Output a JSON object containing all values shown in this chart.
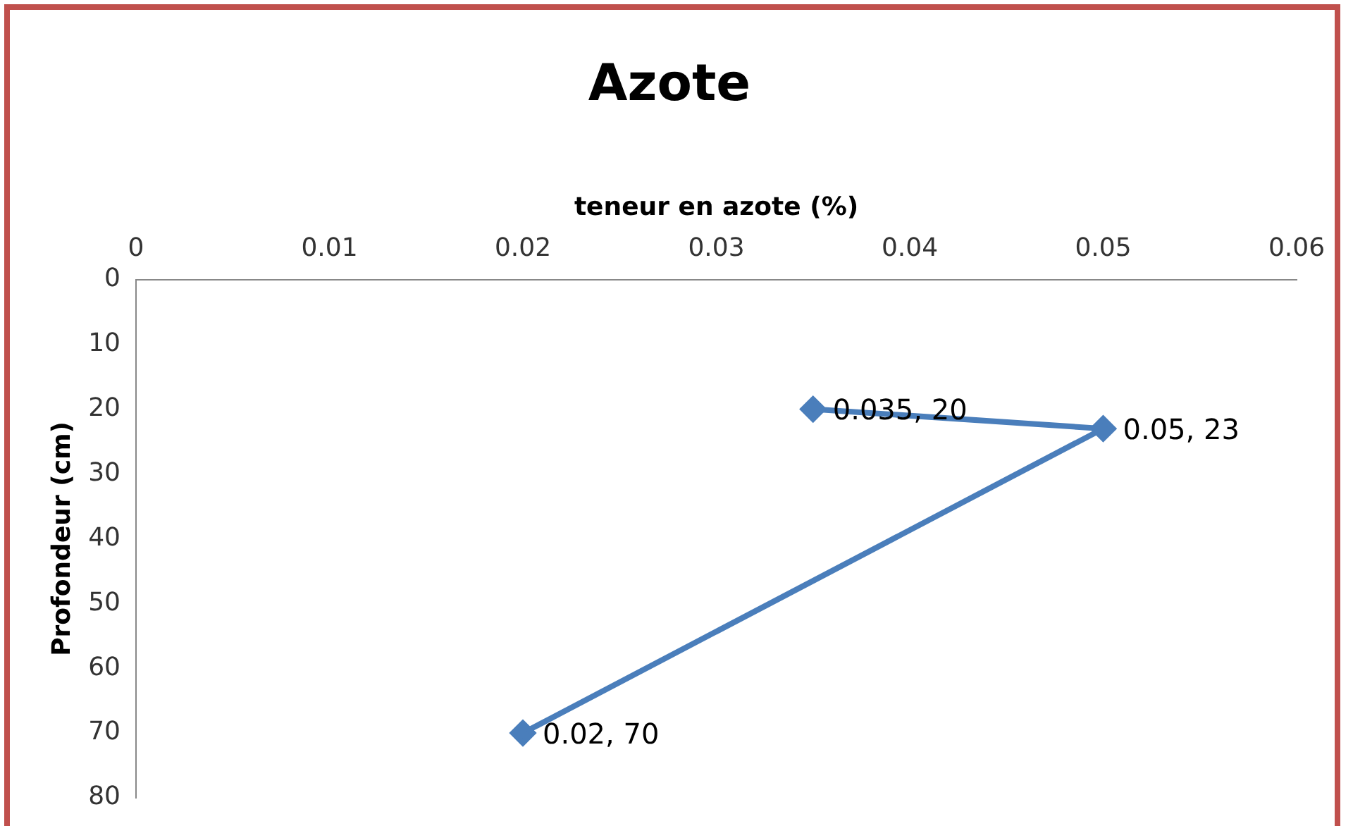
{
  "chart_data": {
    "type": "line",
    "title": "Azote",
    "xlabel": "teneur en azote (%)",
    "ylabel": "Profondeur (cm)",
    "x": [
      0.035,
      0.05,
      0.02
    ],
    "series": [
      {
        "color": "#4a7ebb",
        "values": [
          20,
          23,
          70
        ],
        "value_labels": [
          "0.035, 20",
          "0.05, 23",
          "0.02, 70"
        ]
      }
    ],
    "xlim": [
      0,
      0.06
    ],
    "xticks": [
      0,
      0.01,
      0.02,
      0.03,
      0.04,
      0.05,
      0.06
    ],
    "ylim": [
      80,
      0
    ],
    "yticks": [
      0,
      10,
      20,
      30,
      40,
      50,
      60,
      70,
      80
    ],
    "grid": false,
    "legend": false,
    "marker": "diamond",
    "line_style": "solid"
  }
}
